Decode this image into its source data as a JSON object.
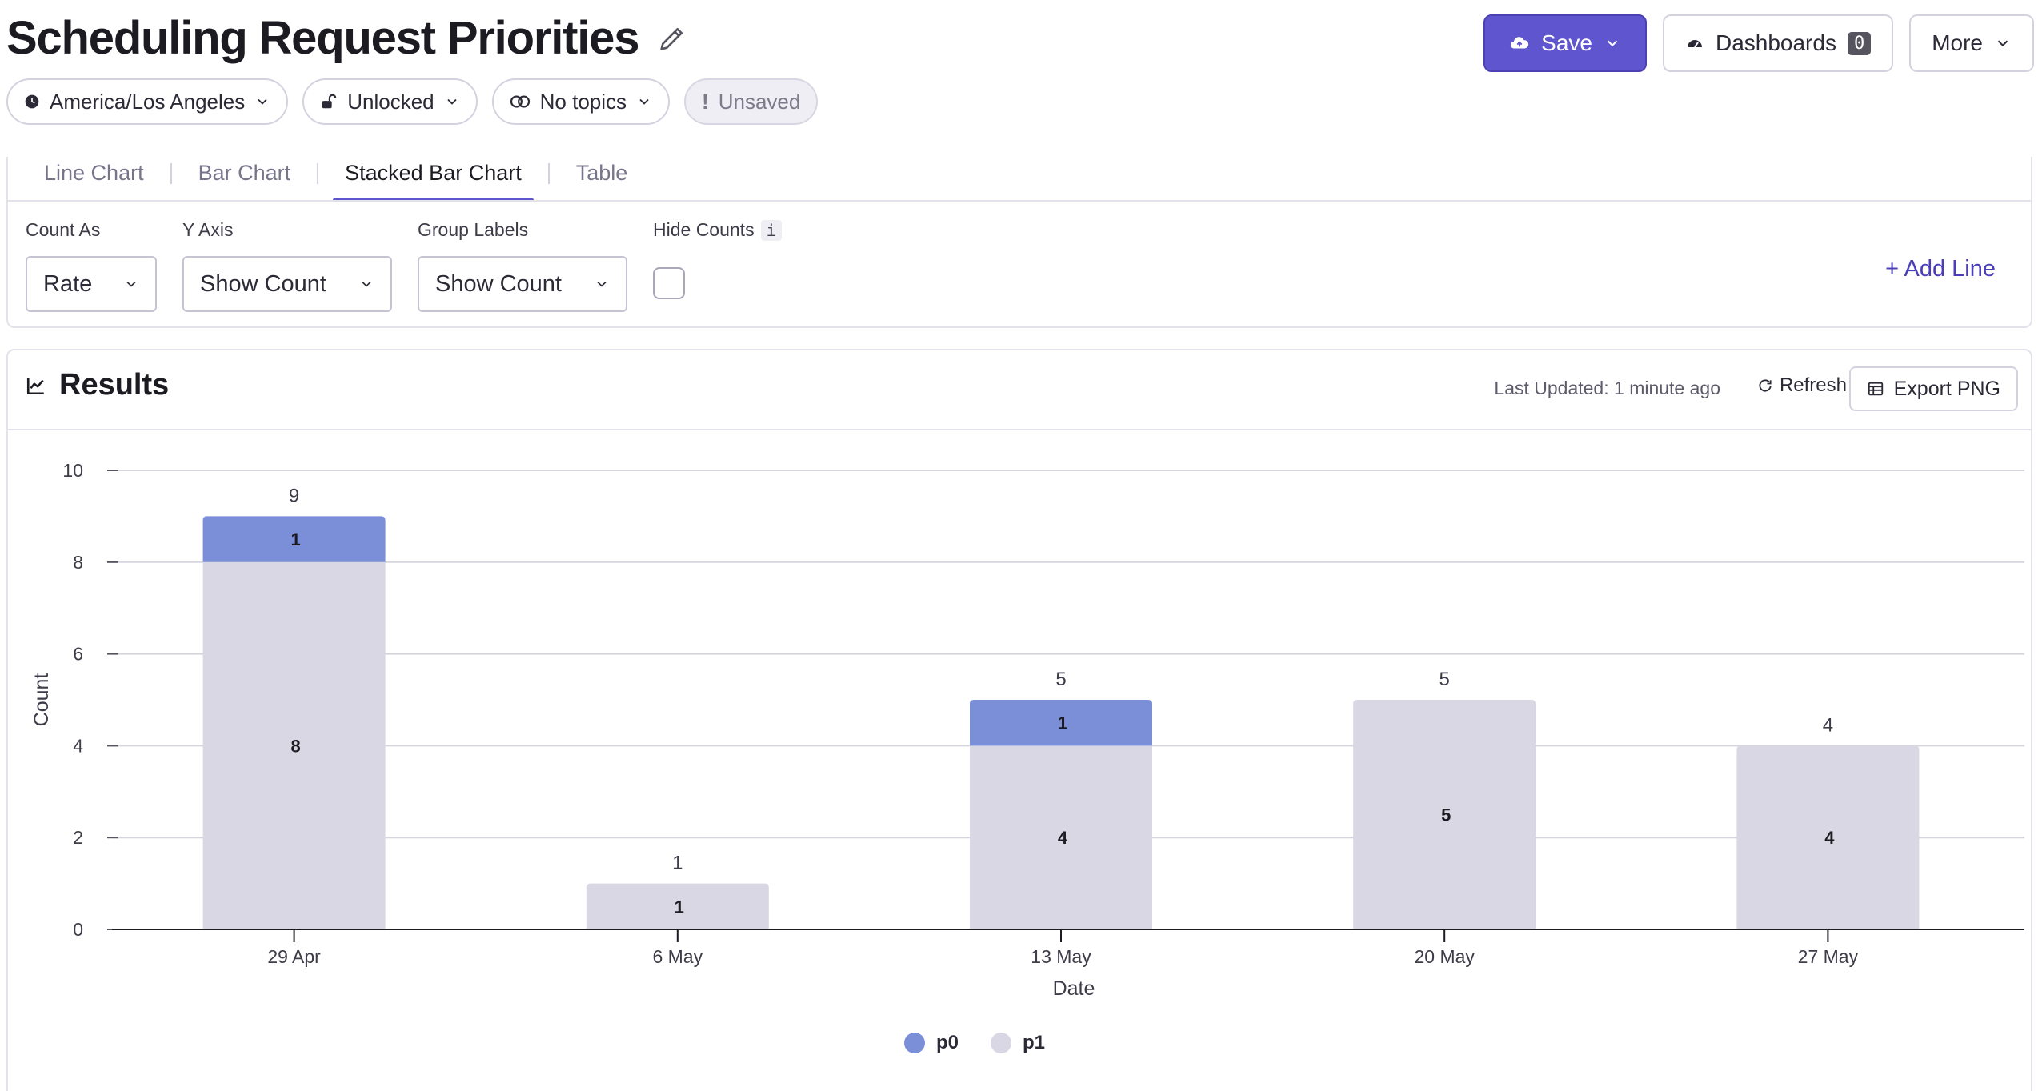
{
  "header": {
    "title": "Scheduling Request Priorities",
    "save_label": "Save",
    "dashboards_label": "Dashboards",
    "dashboards_count": "0",
    "more_label": "More"
  },
  "pills": {
    "timezone": "America/Los Angeles",
    "lock": "Unlocked",
    "topics": "No topics",
    "status": "Unsaved"
  },
  "tabs": [
    "Line Chart",
    "Bar Chart",
    "Stacked Bar Chart",
    "Table"
  ],
  "active_tab": "Stacked Bar Chart",
  "settings": {
    "count_as": {
      "label": "Count As",
      "value": "Rate"
    },
    "y_axis": {
      "label": "Y Axis",
      "value": "Show Count"
    },
    "group_labels": {
      "label": "Group Labels",
      "value": "Show Count"
    },
    "hide_counts": {
      "label": "Hide Counts",
      "info": "i",
      "checked": false
    },
    "add_line": "+ Add Line"
  },
  "results": {
    "title": "Results",
    "last_updated": "Last Updated: 1 minute ago",
    "refresh": "Refresh",
    "export": "Export PNG"
  },
  "colors": {
    "accent": "#5f55cf",
    "p0": "#7b8fd8",
    "p1": "#d8d7e3"
  },
  "chart_data": {
    "type": "bar",
    "stacked": true,
    "categories": [
      "29 Apr",
      "6 May",
      "13 May",
      "20 May",
      "27 May"
    ],
    "series": [
      {
        "name": "p0",
        "values": [
          1,
          0,
          1,
          0,
          0
        ]
      },
      {
        "name": "p1",
        "values": [
          8,
          1,
          4,
          5,
          4
        ]
      }
    ],
    "totals": [
      9,
      1,
      5,
      5,
      4
    ],
    "xlabel": "Date",
    "ylabel": "Count",
    "ylim": [
      0,
      10
    ],
    "yticks": [
      0,
      2,
      4,
      6,
      8,
      10
    ],
    "grid": true,
    "legend": "bottom-center"
  }
}
